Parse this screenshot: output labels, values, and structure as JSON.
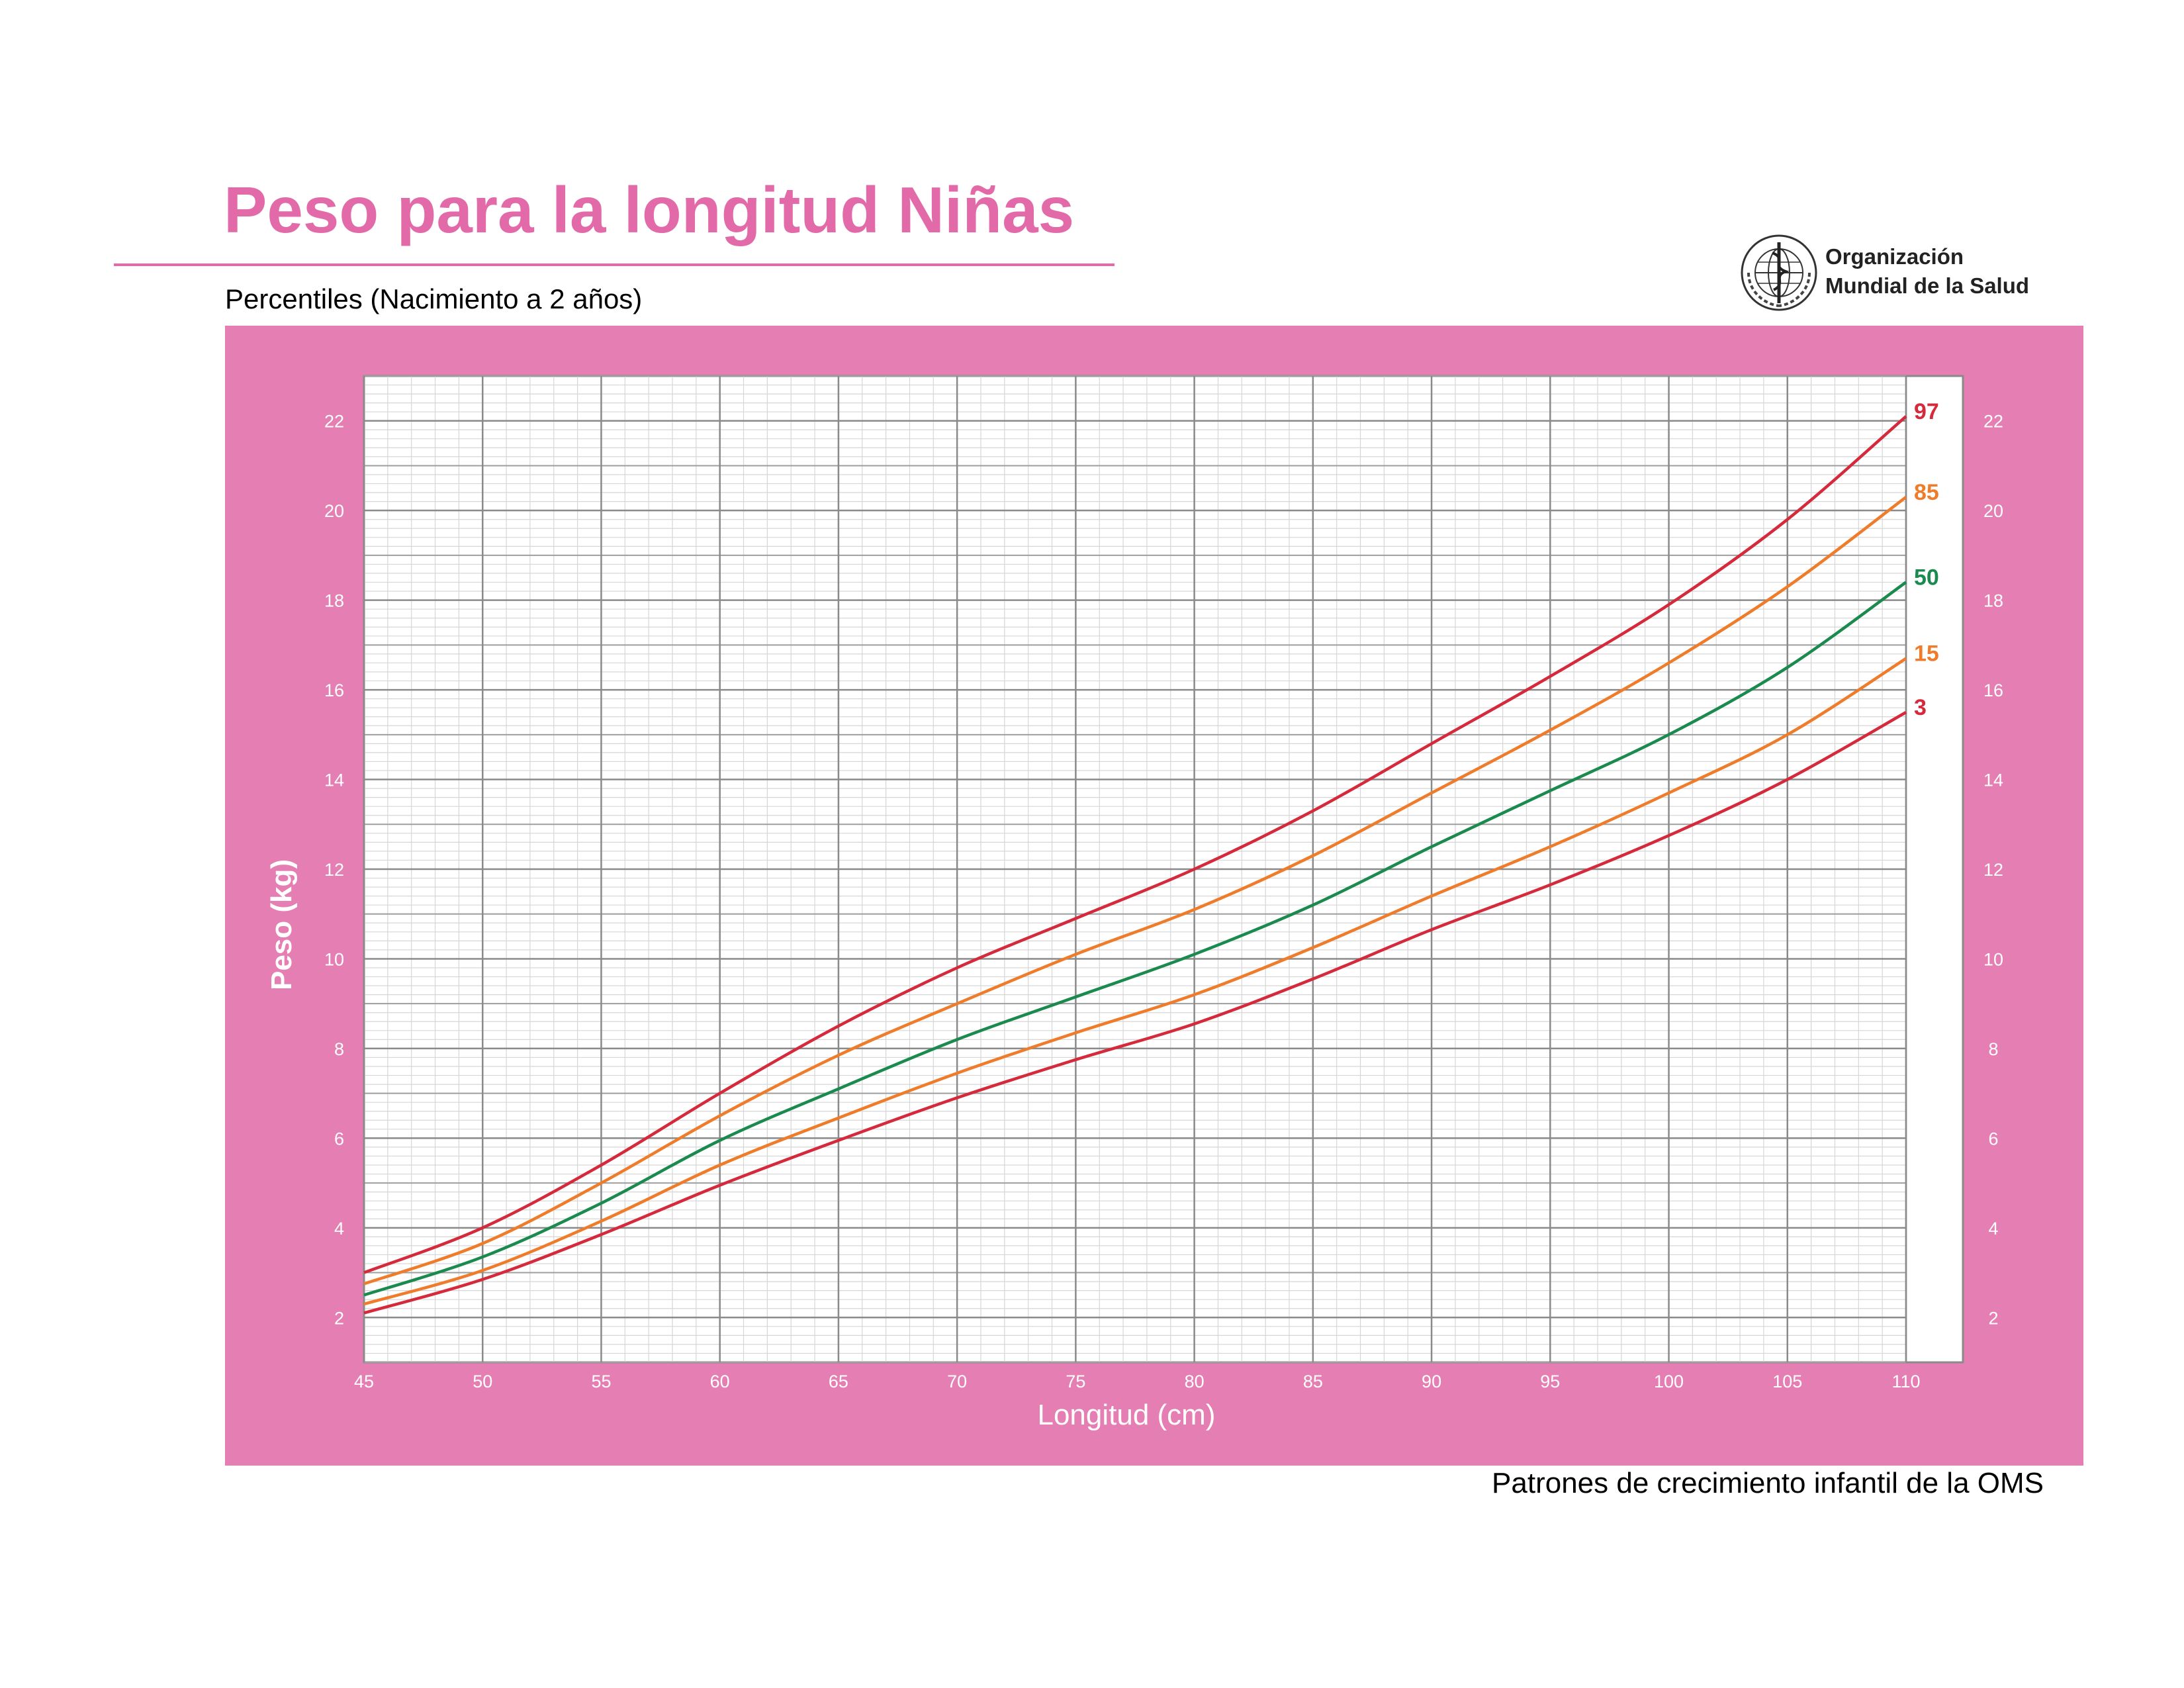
{
  "title": "Peso para la longitud Niñas",
  "subtitle": "Percentiles (Nacimiento a 2 años)",
  "logo": {
    "org_line1": "Organización",
    "org_line2": "Mundial de la Salud",
    "icon": "who-emblem-icon"
  },
  "footer": "Patrones de crecimiento infantil de la OMS",
  "colors": {
    "accent": "#e36aa8",
    "panel": "#e57fb3",
    "p3_p97": "#d42a3c",
    "p15_p85": "#ef7c2a",
    "p50": "#1a8a4e"
  },
  "chart_data": {
    "type": "line",
    "title": "Peso para la longitud Niñas",
    "subtitle": "Percentiles (Nacimiento a 2 años)",
    "xlabel": "Longitud (cm)",
    "ylabel": "Peso (kg)",
    "xlim": [
      45,
      110
    ],
    "ylim": [
      1,
      23
    ],
    "grid": true,
    "x_ticks": [
      45,
      50,
      55,
      60,
      65,
      70,
      75,
      80,
      85,
      90,
      95,
      100,
      105,
      110
    ],
    "y_ticks": [
      2,
      4,
      6,
      8,
      10,
      12,
      14,
      16,
      18,
      20,
      22
    ],
    "x": [
      45,
      50,
      55,
      60,
      65,
      70,
      75,
      80,
      85,
      90,
      95,
      100,
      105,
      110
    ],
    "series": [
      {
        "name": "97",
        "color": "#d42a3c",
        "values": [
          3.0,
          4.0,
          5.4,
          7.0,
          8.5,
          9.8,
          10.9,
          12.0,
          13.3,
          14.8,
          16.3,
          17.9,
          19.8,
          22.1
        ]
      },
      {
        "name": "85",
        "color": "#ef7c2a",
        "values": [
          2.75,
          3.65,
          5.0,
          6.5,
          7.85,
          9.0,
          10.1,
          11.1,
          12.3,
          13.7,
          15.1,
          16.6,
          18.3,
          20.3
        ]
      },
      {
        "name": "50",
        "color": "#1a8a4e",
        "values": [
          2.5,
          3.35,
          4.55,
          5.95,
          7.1,
          8.2,
          9.15,
          10.1,
          11.2,
          12.5,
          13.75,
          15.0,
          16.5,
          18.4
        ]
      },
      {
        "name": "15",
        "color": "#ef7c2a",
        "values": [
          2.3,
          3.05,
          4.15,
          5.4,
          6.45,
          7.45,
          8.35,
          9.2,
          10.25,
          11.4,
          12.5,
          13.7,
          15.0,
          16.7
        ]
      },
      {
        "name": "3",
        "color": "#d42a3c",
        "values": [
          2.1,
          2.85,
          3.85,
          4.95,
          5.95,
          6.9,
          7.75,
          8.55,
          9.55,
          10.65,
          11.65,
          12.75,
          14.0,
          15.5
        ]
      }
    ]
  }
}
